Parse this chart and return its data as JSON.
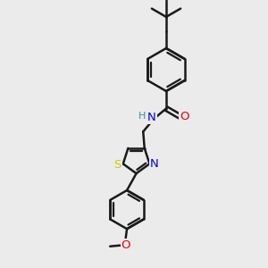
{
  "background_color": "#ebebeb",
  "bond_color": "#1a1a1a",
  "bond_width": 1.8,
  "atom_colors": {
    "C": "#1a1a1a",
    "H": "#3a9090",
    "N": "#0000ee",
    "O": "#ee0000",
    "S": "#cccc00"
  },
  "font_size": 8.5,
  "fig_width": 3.0,
  "fig_height": 3.0,
  "dpi": 100,
  "xlim": [
    -3.5,
    4.5
  ],
  "ylim": [
    -5.8,
    4.2
  ]
}
